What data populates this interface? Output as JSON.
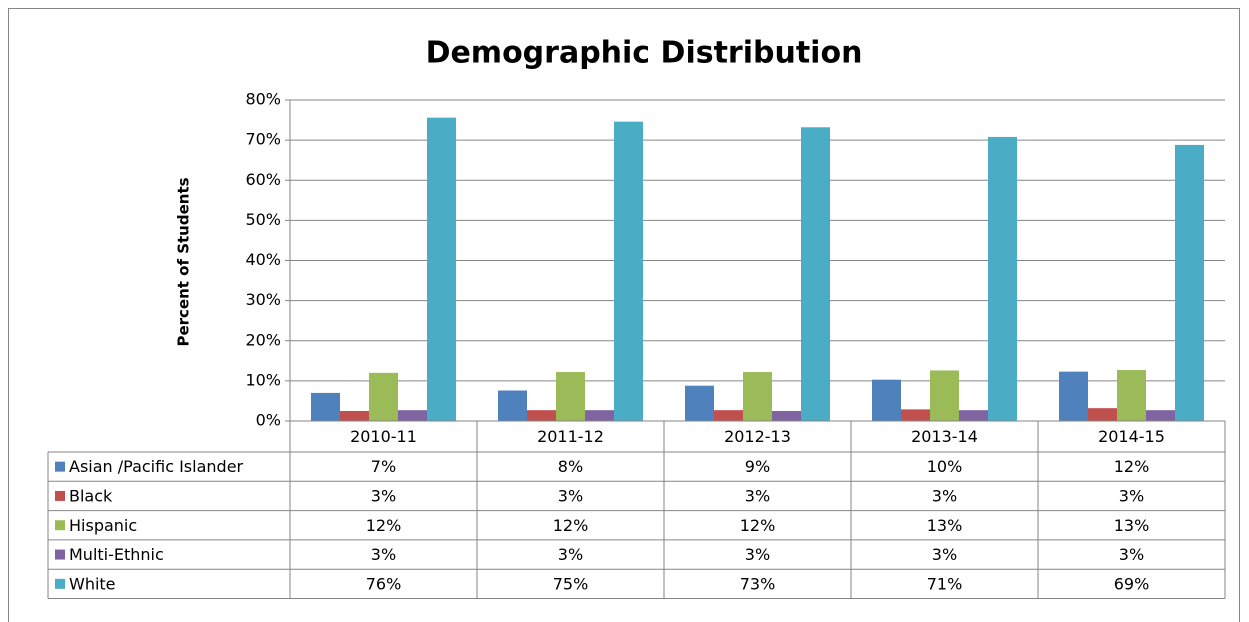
{
  "chart_data": {
    "type": "bar",
    "title": "Demographic Distribution",
    "y_label": "Percent of Students",
    "categories": [
      "2010-11",
      "2011-12",
      "2012-13",
      "2013-14",
      "2014-15"
    ],
    "series": [
      {
        "name": "Asian /Pacific Islander",
        "color": "#4f81bd",
        "values": [
          7.0,
          7.6,
          8.8,
          10.3,
          12.3
        ],
        "value_labels": [
          "7%",
          "8%",
          "9%",
          "10%",
          "12%"
        ]
      },
      {
        "name": "Black",
        "color": "#c0504d",
        "values": [
          2.5,
          2.7,
          2.7,
          2.9,
          3.2
        ],
        "value_labels": [
          "3%",
          "3%",
          "3%",
          "3%",
          "3%"
        ]
      },
      {
        "name": "Hispanic",
        "color": "#9bbb59",
        "values": [
          12.0,
          12.2,
          12.2,
          12.6,
          12.7
        ],
        "value_labels": [
          "12%",
          "12%",
          "12%",
          "13%",
          "13%"
        ]
      },
      {
        "name": "Multi-Ethnic",
        "color": "#8064a2",
        "values": [
          2.7,
          2.7,
          2.5,
          2.7,
          2.7
        ],
        "value_labels": [
          "3%",
          "3%",
          "3%",
          "3%",
          "3%"
        ]
      },
      {
        "name": "White",
        "color": "#4bacc6",
        "values": [
          75.6,
          74.6,
          73.2,
          70.8,
          68.8
        ],
        "value_labels": [
          "76%",
          "75%",
          "73%",
          "71%",
          "69%"
        ]
      }
    ],
    "ylim": [
      0,
      80
    ],
    "yticks": [
      {
        "value": 0,
        "label": "0%"
      },
      {
        "value": 10,
        "label": "10%"
      },
      {
        "value": 20,
        "label": "20%"
      },
      {
        "value": 30,
        "label": "30%"
      },
      {
        "value": 40,
        "label": "40%"
      },
      {
        "value": 50,
        "label": "50%"
      },
      {
        "value": 60,
        "label": "60%"
      },
      {
        "value": 70,
        "label": "70%"
      },
      {
        "value": 80,
        "label": "80%"
      }
    ],
    "grid": true
  }
}
